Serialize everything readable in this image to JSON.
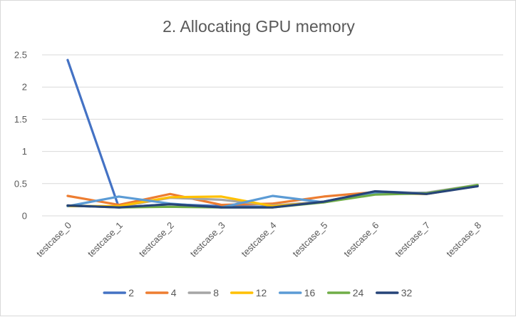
{
  "chart_data": {
    "type": "line",
    "title": "2. Allocating GPU memory",
    "xlabel": "",
    "ylabel": "",
    "categories": [
      "testcase_0",
      "testcase_1",
      "testcase_2",
      "testcase_3",
      "testcase_4",
      "testcase_5",
      "testcase_6",
      "testcase_7",
      "testcase_8"
    ],
    "ylim": [
      0,
      2.5
    ],
    "yticks": [
      "0",
      "0.5",
      "1",
      "1.5",
      "2",
      "2.5"
    ],
    "grid": true,
    "legend_position": "bottom",
    "series": [
      {
        "name": "2",
        "color": "#4472C4",
        "values": [
          2.42,
          0.13,
          0.18,
          0.15,
          0.14,
          0.22,
          0.38,
          0.35,
          0.46
        ]
      },
      {
        "name": "4",
        "color": "#ED7D31",
        "values": [
          0.31,
          0.17,
          0.34,
          0.17,
          0.19,
          0.3,
          0.37,
          0.34,
          0.47
        ]
      },
      {
        "name": "8",
        "color": "#A5A5A5",
        "values": [
          0.16,
          0.14,
          0.28,
          0.25,
          0.16,
          0.22,
          0.36,
          0.36,
          0.48
        ]
      },
      {
        "name": "12",
        "color": "#FFC000",
        "values": [
          0.15,
          0.15,
          0.29,
          0.3,
          0.15,
          0.21,
          0.35,
          0.34,
          0.47
        ]
      },
      {
        "name": "16",
        "color": "#5B9BD5",
        "values": [
          0.15,
          0.3,
          0.19,
          0.13,
          0.31,
          0.21,
          0.36,
          0.35,
          0.47
        ]
      },
      {
        "name": "24",
        "color": "#70AD47",
        "values": [
          0.16,
          0.13,
          0.14,
          0.13,
          0.13,
          0.21,
          0.33,
          0.35,
          0.48
        ]
      },
      {
        "name": "32",
        "color": "#264478",
        "values": [
          0.16,
          0.13,
          0.18,
          0.13,
          0.13,
          0.22,
          0.38,
          0.34,
          0.46
        ]
      }
    ]
  }
}
